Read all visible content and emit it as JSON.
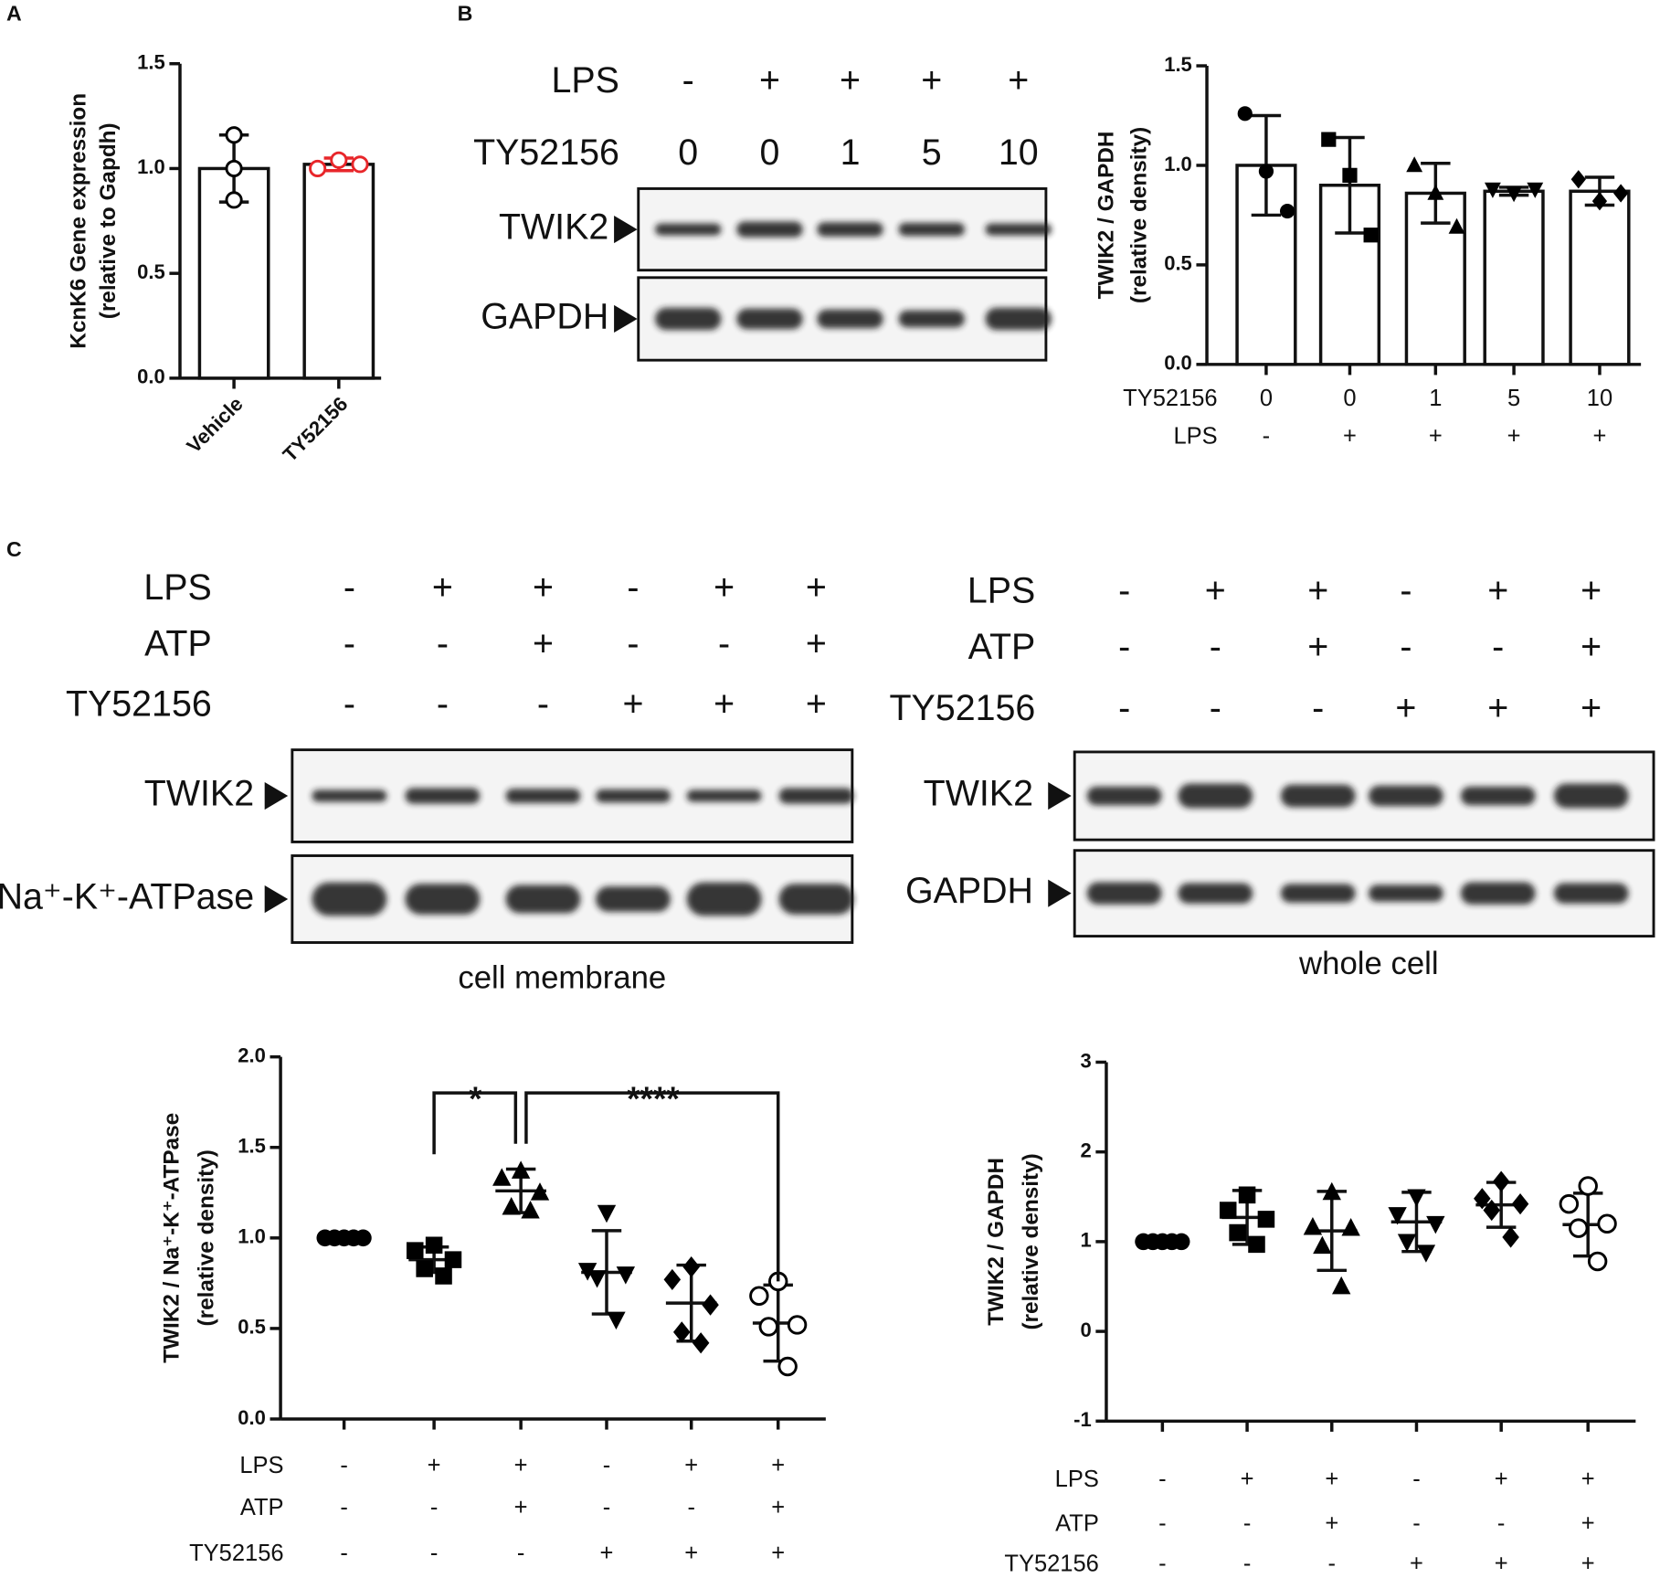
{
  "panel_labels": [
    "A",
    "B",
    "C"
  ],
  "chart_data": [
    {
      "type": "bar",
      "y_label": [
        "KcnK6 Gene expression",
        "(relative to Gapdh)"
      ],
      "categories": [
        "Vehicle",
        "TY52156"
      ],
      "values": [
        1.0,
        1.02
      ],
      "errors": [
        0.16,
        0.03
      ],
      "points": [
        [
          1.16,
          1.0,
          0.85
        ],
        [
          1.0,
          1.04,
          1.02
        ]
      ],
      "colors": [
        "#000000",
        "#e8262a"
      ],
      "markers": [
        "circle-open",
        "circle-open"
      ],
      "ylim": [
        0,
        1.5
      ],
      "yticks": [
        {
          "value": 0,
          "label": "0.0"
        },
        0.5,
        {
          "value": 1,
          "label": "1.0"
        },
        1.5
      ]
    },
    {
      "type": "bar",
      "y_label": [
        "TWIK2 / GAPDH",
        "(relative density)"
      ],
      "condition_rows": [
        {
          "name": "TY52156",
          "labels": [
            "0",
            "0",
            "1",
            "5",
            "10"
          ]
        },
        {
          "name": "LPS",
          "labels": [
            "-",
            "+",
            "+",
            "+",
            "+"
          ]
        }
      ],
      "values": [
        1.0,
        0.9,
        0.86,
        0.87,
        0.87
      ],
      "errors": [
        0.25,
        0.24,
        0.15,
        0.02,
        0.07
      ],
      "points": [
        [
          1.26,
          0.97,
          0.77
        ],
        [
          1.13,
          0.95,
          0.65
        ],
        [
          1.0,
          0.86,
          0.69
        ],
        [
          0.88,
          0.86,
          0.88
        ],
        [
          0.93,
          0.82,
          0.86
        ]
      ],
      "colors": [
        "#000000",
        "#000000",
        "#000000",
        "#000000",
        "#000000"
      ],
      "markers": [
        "circle",
        "square",
        "triangle-up",
        "triangle-down",
        "diamond"
      ],
      "ylim": [
        0,
        1.5
      ],
      "yticks": [
        {
          "value": 0,
          "label": "0.0"
        },
        0.5,
        {
          "value": 1,
          "label": "1.0"
        },
        1.5
      ]
    },
    {
      "type": "scatter",
      "y_label": [
        "TWIK2 / Na⁺-K⁺-ATPase",
        "(relative density)"
      ],
      "condition_rows": [
        {
          "name": "LPS",
          "labels": [
            "-",
            "+",
            "+",
            "-",
            "+",
            "+"
          ]
        },
        {
          "name": "ATP",
          "labels": [
            "-",
            "-",
            "+",
            "-",
            "-",
            "+"
          ]
        },
        {
          "name": "TY52156",
          "labels": [
            "-",
            "-",
            "-",
            "+",
            "+",
            "+"
          ]
        }
      ],
      "values": [
        1.0,
        0.88,
        1.26,
        0.81,
        0.64,
        0.53
      ],
      "errors": [
        0,
        0.07,
        0.12,
        0.23,
        0.21,
        0.21
      ],
      "points": [
        [
          1,
          1,
          1,
          1,
          1
        ],
        [
          0.96,
          0.93,
          0.88,
          0.83,
          0.79
        ],
        [
          1.37,
          1.33,
          1.25,
          1.17,
          1.15
        ],
        [
          1.14,
          0.82,
          0.8,
          0.78,
          0.55
        ],
        [
          0.84,
          0.77,
          0.63,
          0.48,
          0.42
        ],
        [
          0.76,
          0.68,
          0.52,
          0.51,
          0.29
        ]
      ],
      "colors": [
        "#000000",
        "#000000",
        "#000000",
        "#000000",
        "#000000",
        "#000000"
      ],
      "markers": [
        "circle",
        "square",
        "triangle-up",
        "triangle-down",
        "diamond",
        "circle-open"
      ],
      "annotations": [
        "*",
        "****"
      ],
      "ylim": [
        0,
        2
      ],
      "yticks": [
        {
          "value": 0,
          "label": "0.0"
        },
        0.5,
        {
          "value": 1,
          "label": "1.0"
        },
        1.5,
        {
          "value": 2,
          "label": "2.0"
        }
      ]
    },
    {
      "type": "scatter",
      "y_label": [
        "TWIK2 / GAPDH",
        "(relative density)"
      ],
      "condition_rows": [
        {
          "name": "LPS",
          "labels": [
            "-",
            "+",
            "+",
            "-",
            "+",
            "+"
          ]
        },
        {
          "name": "ATP",
          "labels": [
            "-",
            "-",
            "+",
            "-",
            "-",
            "+"
          ]
        },
        {
          "name": "TY52156",
          "labels": [
            "-",
            "-",
            "-",
            "+",
            "+",
            "+"
          ]
        }
      ],
      "values": [
        1.0,
        1.27,
        1.12,
        1.22,
        1.41,
        1.19
      ],
      "errors": [
        0,
        0.3,
        0.44,
        0.33,
        0.25,
        0.35
      ],
      "points": [
        [
          1,
          1,
          1,
          1,
          1
        ],
        [
          1.52,
          1.35,
          1.25,
          1.1,
          0.97
        ],
        [
          1.55,
          1.16,
          1.15,
          0.95,
          0.5
        ],
        [
          1.5,
          1.3,
          1.2,
          1.0,
          0.88
        ],
        [
          1.67,
          1.48,
          1.42,
          1.35,
          1.05
        ],
        [
          1.62,
          1.42,
          1.2,
          1.15,
          0.78
        ]
      ],
      "colors": [
        "#000000",
        "#000000",
        "#000000",
        "#000000",
        "#000000",
        "#000000"
      ],
      "markers": [
        "circle",
        "square",
        "triangle-up",
        "triangle-down",
        "diamond",
        "circle-open"
      ],
      "ylim": [
        -1,
        3
      ],
      "yticks": [
        -1,
        0,
        1,
        2,
        3
      ]
    }
  ],
  "blots": [
    {
      "rows": [
        {
          "name": "LPS",
          "labels": [
            "-",
            "+",
            "+",
            "+",
            "+"
          ]
        },
        {
          "name": "TY52156",
          "labels": [
            "0",
            "0",
            "1",
            "5",
            "10"
          ]
        }
      ],
      "bands": [
        "TWIK2",
        "GAPDH"
      ]
    },
    {
      "rows": [
        {
          "name": "LPS",
          "labels": [
            "-",
            "+",
            "+",
            "-",
            "+",
            "+"
          ]
        },
        {
          "name": "ATP",
          "labels": [
            "-",
            "-",
            "+",
            "-",
            "-",
            "+"
          ]
        },
        {
          "name": "TY52156",
          "labels": [
            "-",
            "-",
            "-",
            "+",
            "+",
            "+"
          ]
        }
      ],
      "bands": [
        "TWIK2",
        "Na⁺-K⁺-ATPase"
      ],
      "caption": "cell membrane"
    },
    {
      "rows": [
        {
          "name": "LPS",
          "labels": [
            "-",
            "+",
            "+",
            "-",
            "+",
            "+"
          ]
        },
        {
          "name": "ATP",
          "labels": [
            "-",
            "-",
            "+",
            "-",
            "-",
            "+"
          ]
        },
        {
          "name": "TY52156",
          "labels": [
            "-",
            "-",
            "-",
            "+",
            "+",
            "+"
          ]
        }
      ],
      "bands": [
        "TWIK2",
        "GAPDH"
      ],
      "caption": "whole cell"
    }
  ]
}
